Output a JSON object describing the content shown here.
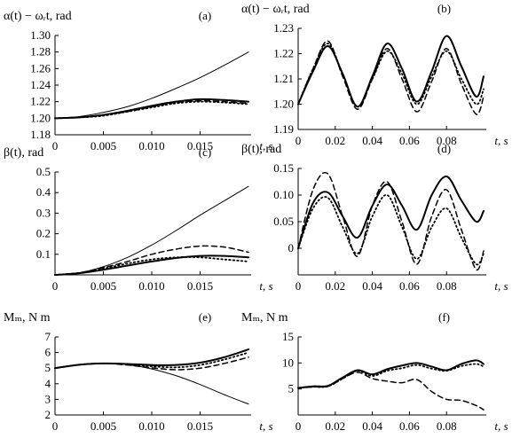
{
  "chart_data": [
    {
      "type": "line",
      "panel": "(a)",
      "ylabel": "α(t) − ωᵣt, rad",
      "xlabel": "t, s",
      "xlim": [
        0,
        0.02
      ],
      "ylim": [
        1.18,
        1.3
      ],
      "xticks": [
        0,
        0.005,
        0.01,
        0.015
      ],
      "xtick_labels": [
        "0",
        "0.005",
        "0.010",
        "0.015"
      ],
      "yticks": [
        1.18,
        1.2,
        1.22,
        1.24,
        1.26,
        1.28,
        1.3
      ],
      "ytick_labels": [
        "1.18",
        "1.20",
        "1.22",
        "1.24",
        "1.26",
        "1.28",
        "1.30"
      ],
      "grid": false,
      "series": [
        {
          "style": "thin-solid",
          "x": [
            0,
            0.0025,
            0.005,
            0.0075,
            0.01,
            0.0125,
            0.015,
            0.0175,
            0.02
          ],
          "values": [
            1.2,
            1.202,
            1.207,
            1.214,
            1.224,
            1.236,
            1.249,
            1.264,
            1.28
          ]
        },
        {
          "style": "thick-solid",
          "x": [
            0,
            0.0025,
            0.005,
            0.0075,
            0.01,
            0.0125,
            0.015,
            0.0175,
            0.02
          ],
          "values": [
            1.2,
            1.201,
            1.204,
            1.209,
            1.215,
            1.22,
            1.223,
            1.222,
            1.22
          ]
        },
        {
          "style": "dashed",
          "x": [
            0,
            0.0025,
            0.005,
            0.0075,
            0.01,
            0.0125,
            0.015,
            0.0175,
            0.02
          ],
          "values": [
            1.2,
            1.201,
            1.204,
            1.208,
            1.214,
            1.219,
            1.221,
            1.22,
            1.218
          ]
        },
        {
          "style": "dotted",
          "x": [
            0,
            0.0025,
            0.005,
            0.0075,
            0.01,
            0.0125,
            0.015,
            0.0175,
            0.02
          ],
          "values": [
            1.2,
            1.201,
            1.203,
            1.208,
            1.213,
            1.218,
            1.22,
            1.219,
            1.217
          ]
        }
      ]
    },
    {
      "type": "line",
      "panel": "(b)",
      "ylabel": "α(t) − ωᵣt, rad",
      "xlabel": "t, s",
      "xlim": [
        0,
        0.1
      ],
      "ylim": [
        1.19,
        1.23
      ],
      "xticks": [
        0,
        0.02,
        0.04,
        0.06,
        0.08
      ],
      "xtick_labels": [
        "0",
        "0.02",
        "0.04",
        "0.06",
        "0.08"
      ],
      "yticks": [
        1.19,
        1.2,
        1.21,
        1.22,
        1.23
      ],
      "ytick_labels": [
        "1.19",
        "1.20",
        "1.21",
        "1.22",
        "1.23"
      ],
      "grid": false,
      "series": [
        {
          "style": "thick-solid",
          "x": [
            0,
            0.008,
            0.016,
            0.024,
            0.032,
            0.04,
            0.048,
            0.056,
            0.064,
            0.072,
            0.08,
            0.088,
            0.096,
            0.1
          ],
          "values": [
            1.2,
            1.213,
            1.223,
            1.212,
            1.199,
            1.211,
            1.224,
            1.214,
            1.201,
            1.213,
            1.227,
            1.215,
            1.203,
            1.211
          ]
        },
        {
          "style": "dashed",
          "x": [
            0,
            0.008,
            0.016,
            0.024,
            0.032,
            0.04,
            0.048,
            0.056,
            0.064,
            0.072,
            0.08,
            0.088,
            0.096,
            0.1
          ],
          "values": [
            1.2,
            1.214,
            1.225,
            1.211,
            1.198,
            1.21,
            1.222,
            1.21,
            1.197,
            1.209,
            1.222,
            1.208,
            1.196,
            1.203
          ]
        },
        {
          "style": "dotted",
          "x": [
            0,
            0.008,
            0.016,
            0.024,
            0.032,
            0.04,
            0.048,
            0.056,
            0.064,
            0.072,
            0.08,
            0.088,
            0.096,
            0.1
          ],
          "values": [
            1.2,
            1.214,
            1.224,
            1.212,
            1.199,
            1.21,
            1.221,
            1.212,
            1.2,
            1.211,
            1.221,
            1.21,
            1.2,
            1.206
          ]
        }
      ]
    },
    {
      "type": "line",
      "panel": "(c)",
      "ylabel": "β(t), rad",
      "xlabel": "t, s",
      "xlim": [
        0,
        0.02
      ],
      "ylim": [
        0,
        0.5
      ],
      "xticks": [
        0,
        0.005,
        0.01,
        0.015
      ],
      "xtick_labels": [
        "0",
        "0.005",
        "0.010",
        "0.015"
      ],
      "yticks": [
        0.1,
        0.2,
        0.3,
        0.4,
        0.5
      ],
      "ytick_labels": [
        "0.1",
        "0.2",
        "0.3",
        "0.4",
        "0.5"
      ],
      "grid": false,
      "series": [
        {
          "style": "thin-solid",
          "x": [
            0,
            0.0025,
            0.005,
            0.0075,
            0.01,
            0.0125,
            0.015,
            0.0175,
            0.02
          ],
          "values": [
            0,
            0.01,
            0.04,
            0.085,
            0.145,
            0.215,
            0.29,
            0.36,
            0.43
          ]
        },
        {
          "style": "thick-solid",
          "x": [
            0,
            0.0025,
            0.005,
            0.0075,
            0.01,
            0.0125,
            0.015,
            0.0175,
            0.02
          ],
          "values": [
            0,
            0.008,
            0.025,
            0.045,
            0.065,
            0.082,
            0.092,
            0.092,
            0.085
          ]
        },
        {
          "style": "dashed",
          "x": [
            0,
            0.0025,
            0.005,
            0.0075,
            0.01,
            0.0125,
            0.015,
            0.0175,
            0.02
          ],
          "values": [
            0,
            0.01,
            0.035,
            0.065,
            0.1,
            0.125,
            0.14,
            0.135,
            0.11
          ]
        },
        {
          "style": "dotted",
          "x": [
            0,
            0.0025,
            0.005,
            0.0075,
            0.01,
            0.0125,
            0.015,
            0.0175,
            0.02
          ],
          "values": [
            0,
            0.009,
            0.03,
            0.055,
            0.075,
            0.085,
            0.085,
            0.075,
            0.065
          ]
        }
      ]
    },
    {
      "type": "line",
      "panel": "(d)",
      "ylabel": "β(t), rad",
      "xlabel": "t, s",
      "xlim": [
        0,
        0.1
      ],
      "ylim": [
        -0.05,
        0.15
      ],
      "xticks": [
        0,
        0.02,
        0.04,
        0.06,
        0.08
      ],
      "xtick_labels": [
        "0",
        "0.02",
        "0.04",
        "0.06",
        "0.08"
      ],
      "yticks": [
        0,
        0.05,
        0.1,
        0.15
      ],
      "ytick_labels": [
        "0",
        "0.05",
        "0.10",
        "0.15"
      ],
      "grid": false,
      "series": [
        {
          "style": "thick-solid",
          "x": [
            0,
            0.008,
            0.016,
            0.024,
            0.032,
            0.04,
            0.048,
            0.056,
            0.064,
            0.072,
            0.08,
            0.088,
            0.096,
            0.1
          ],
          "values": [
            0,
            0.085,
            0.105,
            0.06,
            0.02,
            0.08,
            0.12,
            0.08,
            0.035,
            0.1,
            0.135,
            0.09,
            0.05,
            0.07
          ]
        },
        {
          "style": "dashed",
          "x": [
            0,
            0.008,
            0.016,
            0.024,
            0.032,
            0.04,
            0.048,
            0.056,
            0.064,
            0.072,
            0.08,
            0.088,
            0.096,
            0.1
          ],
          "values": [
            0,
            0.11,
            0.14,
            0.06,
            -0.015,
            0.08,
            0.125,
            0.05,
            -0.03,
            0.06,
            0.11,
            0.035,
            -0.04,
            -0.005
          ]
        },
        {
          "style": "dotted",
          "x": [
            0,
            0.008,
            0.016,
            0.024,
            0.032,
            0.04,
            0.048,
            0.056,
            0.064,
            0.072,
            0.08,
            0.088,
            0.096,
            0.1
          ],
          "values": [
            0,
            0.075,
            0.095,
            0.04,
            -0.01,
            0.06,
            0.1,
            0.04,
            -0.02,
            0.04,
            0.075,
            0.02,
            -0.03,
            -0.01
          ]
        }
      ]
    },
    {
      "type": "line",
      "panel": "(e)",
      "ylabel": "Mₘ, N m",
      "xlabel": "t, s",
      "xlim": [
        0,
        0.02
      ],
      "ylim": [
        2,
        7
      ],
      "xticks": [
        0,
        0.005,
        0.01,
        0.015
      ],
      "xtick_labels": [
        "0",
        "0.005",
        "0.010",
        "0.015"
      ],
      "yticks": [
        2,
        3,
        4,
        5,
        6,
        7
      ],
      "ytick_labels": [
        "2",
        "3",
        "4",
        "5",
        "6",
        "7"
      ],
      "grid": false,
      "series": [
        {
          "style": "thin-solid",
          "x": [
            0,
            0.0025,
            0.005,
            0.0075,
            0.01,
            0.0125,
            0.015,
            0.0175,
            0.02
          ],
          "values": [
            5.0,
            5.22,
            5.3,
            5.22,
            4.95,
            4.52,
            3.95,
            3.3,
            2.7
          ]
        },
        {
          "style": "thick-solid",
          "x": [
            0,
            0.0025,
            0.005,
            0.0075,
            0.01,
            0.0125,
            0.015,
            0.0175,
            0.02
          ],
          "values": [
            5.0,
            5.22,
            5.3,
            5.27,
            5.2,
            5.2,
            5.35,
            5.7,
            6.2
          ]
        },
        {
          "style": "dashed",
          "x": [
            0,
            0.0025,
            0.005,
            0.0075,
            0.01,
            0.0125,
            0.015,
            0.0175,
            0.02
          ],
          "values": [
            5.0,
            5.22,
            5.3,
            5.2,
            5.02,
            4.9,
            5.0,
            5.3,
            5.7
          ]
        },
        {
          "style": "dotted",
          "x": [
            0,
            0.0025,
            0.005,
            0.0075,
            0.01,
            0.0125,
            0.015,
            0.0175,
            0.02
          ],
          "values": [
            5.0,
            5.22,
            5.3,
            5.25,
            5.12,
            5.05,
            5.2,
            5.55,
            6.0
          ]
        }
      ]
    },
    {
      "type": "line",
      "panel": "(f)",
      "ylabel": "Mₘ, N m",
      "xlabel": "t, s",
      "xlim": [
        0,
        0.1
      ],
      "ylim": [
        0,
        15
      ],
      "xticks": [
        0,
        0.02,
        0.04,
        0.06,
        0.08
      ],
      "xtick_labels": [
        "0",
        "0.02",
        "0.04",
        "0.06",
        "0.08"
      ],
      "yticks": [
        5,
        10,
        15
      ],
      "ytick_labels": [
        "5",
        "10",
        "15"
      ],
      "grid": false,
      "series": [
        {
          "style": "thick-solid",
          "x": [
            0,
            0.008,
            0.016,
            0.024,
            0.032,
            0.04,
            0.048,
            0.056,
            0.064,
            0.072,
            0.08,
            0.088,
            0.096,
            0.1
          ],
          "values": [
            5.2,
            5.5,
            5.6,
            7.2,
            8.6,
            7.8,
            8.8,
            9.5,
            10.0,
            9.3,
            8.6,
            9.8,
            10.5,
            9.8
          ]
        },
        {
          "style": "dashed",
          "x": [
            0,
            0.008,
            0.016,
            0.024,
            0.032,
            0.04,
            0.048,
            0.056,
            0.064,
            0.072,
            0.08,
            0.088,
            0.096,
            0.1
          ],
          "values": [
            5.2,
            5.4,
            5.5,
            7.0,
            8.2,
            7.0,
            6.5,
            6.2,
            6.8,
            4.5,
            3.0,
            2.8,
            1.8,
            1.0
          ]
        },
        {
          "style": "dotted",
          "x": [
            0,
            0.008,
            0.016,
            0.024,
            0.032,
            0.04,
            0.048,
            0.056,
            0.064,
            0.072,
            0.08,
            0.088,
            0.096,
            0.1
          ],
          "values": [
            5.2,
            5.4,
            5.5,
            7.0,
            8.5,
            7.5,
            8.5,
            9.0,
            9.6,
            8.9,
            8.5,
            9.4,
            9.8,
            9.3
          ]
        }
      ]
    }
  ]
}
